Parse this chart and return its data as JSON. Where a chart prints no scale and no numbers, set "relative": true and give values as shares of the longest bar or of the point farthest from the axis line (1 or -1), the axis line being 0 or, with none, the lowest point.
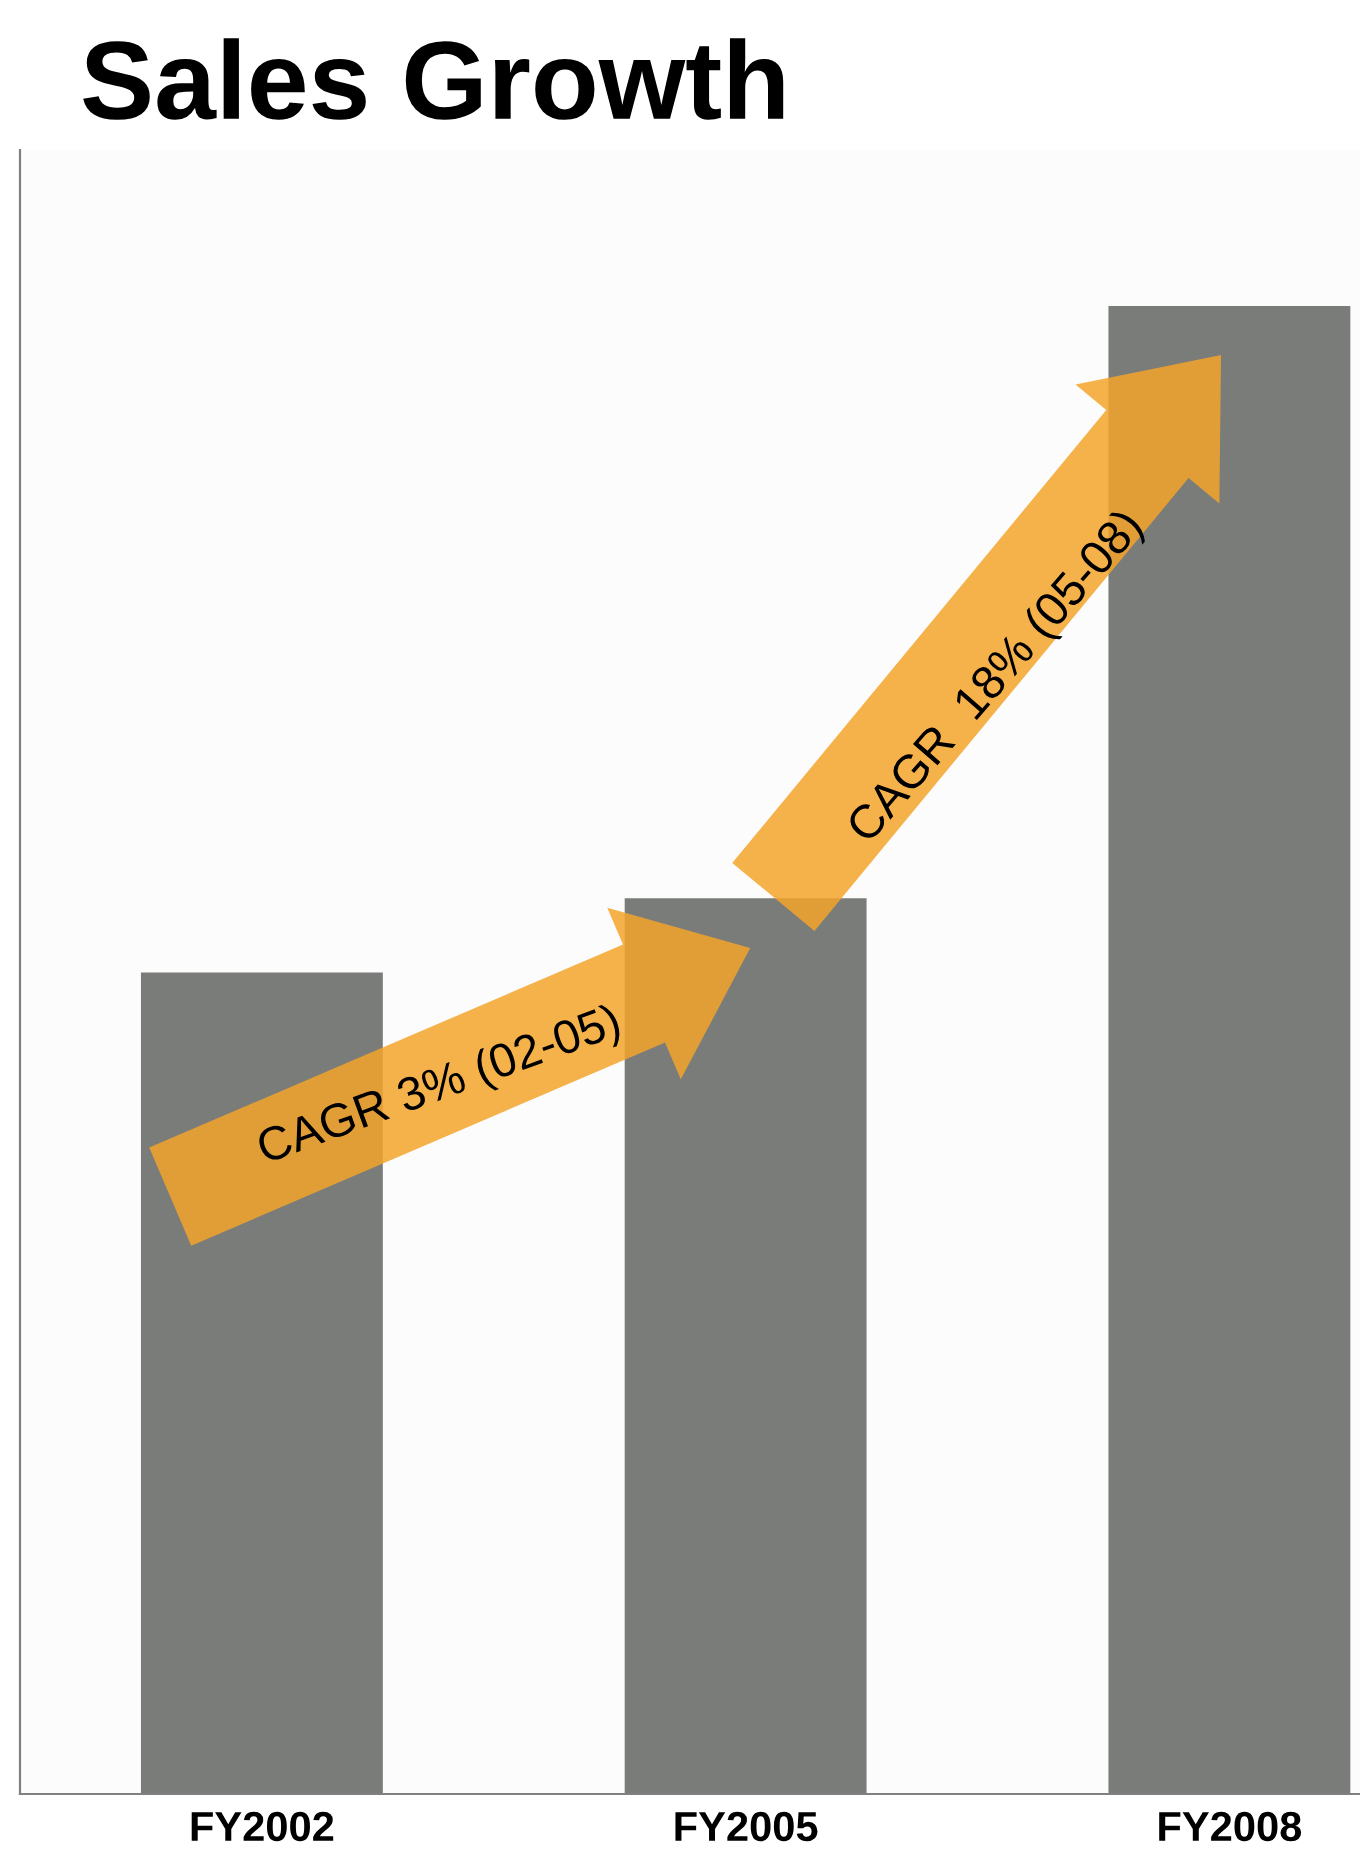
{
  "chart_data": {
    "type": "bar",
    "title": "Sales Growth",
    "relative": true,
    "categories": [
      "FY2002",
      "FY2005",
      "FY2008"
    ],
    "values": [
      0.552,
      0.602,
      1
    ],
    "color": "#7a7c79",
    "annotations": [
      "CAGR 3% (02-05)",
      "CAGR  18% (05-08)"
    ]
  }
}
